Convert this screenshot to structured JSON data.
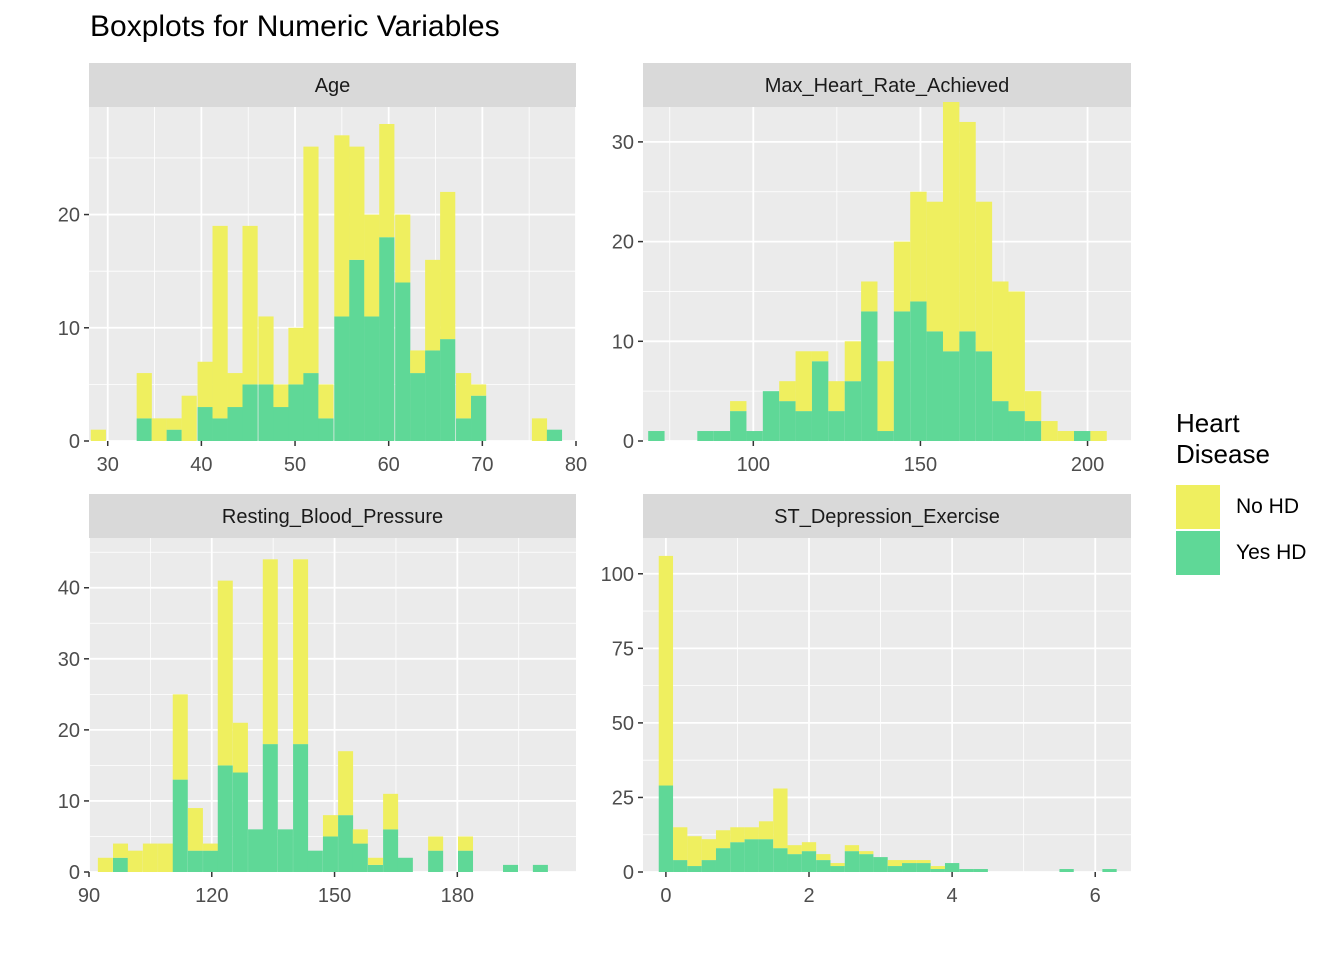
{
  "title": "Boxplots for Numeric Variables",
  "legend": {
    "title": "Heart\nDisease",
    "items": [
      {
        "label": "No HD",
        "color": "#EFEF5F"
      },
      {
        "label": "Yes HD",
        "color": "#5FD897"
      }
    ]
  },
  "colors": {
    "panel_bg": "#EBEBEB",
    "strip_bg": "#D9D9D9",
    "grid": "#FFFFFF",
    "axis_text": "#4D4D4D",
    "no_hd": "#EFEF5F",
    "yes_hd": "#5FD897"
  },
  "chart_data": [
    {
      "type": "bar",
      "stacked": true,
      "strip_label": "Age",
      "xlim": [
        28,
        80
      ],
      "ylim": [
        0,
        29.5
      ],
      "x_ticks": [
        30,
        40,
        50,
        60,
        70,
        80
      ],
      "y_ticks": [
        0,
        10,
        20
      ],
      "bin_width": 1.62,
      "bin_centers": [
        29.0,
        30.6,
        32.2,
        33.9,
        35.5,
        37.1,
        38.7,
        40.4,
        42.0,
        43.6,
        45.2,
        46.9,
        48.5,
        50.1,
        51.7,
        53.3,
        55.0,
        56.6,
        58.2,
        59.8,
        61.5,
        63.1,
        64.7,
        66.3,
        68.0,
        69.6,
        71.2,
        72.8,
        74.5,
        76.1,
        77.7
      ],
      "series": [
        {
          "name": "No HD",
          "values": [
            1,
            0,
            0,
            4,
            2,
            1,
            4,
            4,
            17,
            3,
            14,
            6,
            2,
            5,
            20,
            3,
            16,
            10,
            9,
            10,
            6,
            2,
            8,
            13,
            4,
            1,
            0,
            0,
            0,
            2,
            0
          ]
        },
        {
          "name": "Yes HD",
          "values": [
            0,
            0,
            0,
            2,
            0,
            1,
            0,
            3,
            2,
            3,
            5,
            5,
            3,
            5,
            6,
            2,
            11,
            16,
            11,
            18,
            14,
            6,
            8,
            9,
            2,
            4,
            0,
            0,
            0,
            0,
            1
          ]
        }
      ]
    },
    {
      "type": "bar",
      "stacked": true,
      "strip_label": "Max_Heart_Rate_Achieved",
      "xlim": [
        67,
        213
      ],
      "ylim": [
        0,
        33.5
      ],
      "x_ticks": [
        100,
        150,
        200
      ],
      "y_ticks": [
        0,
        10,
        20,
        30
      ],
      "bin_width": 4.9,
      "bin_centers": [
        71.0,
        75.9,
        80.8,
        85.7,
        90.6,
        95.5,
        100.4,
        105.3,
        110.2,
        115.1,
        120.0,
        124.9,
        129.8,
        134.7,
        139.6,
        144.5,
        149.4,
        154.3,
        159.2,
        164.1,
        169.0,
        173.9,
        178.8,
        183.7,
        188.6,
        193.5,
        198.4,
        203.3
      ],
      "series": [
        {
          "name": "No HD",
          "values": [
            0,
            0,
            0,
            0,
            0,
            1,
            0,
            0,
            2,
            6,
            1,
            3,
            4,
            3,
            7,
            7,
            11,
            13,
            25,
            21,
            15,
            12,
            12,
            3,
            2,
            1,
            0,
            1
          ]
        },
        {
          "name": "Yes HD",
          "values": [
            1,
            0,
            0,
            1,
            1,
            3,
            1,
            5,
            4,
            3,
            8,
            3,
            6,
            13,
            1,
            13,
            14,
            11,
            9,
            11,
            9,
            4,
            3,
            2,
            0,
            0,
            1,
            0
          ]
        }
      ]
    },
    {
      "type": "bar",
      "stacked": true,
      "strip_label": "Resting_Blood_Pressure",
      "xlim": [
        90,
        209
      ],
      "ylim": [
        0,
        47
      ],
      "x_ticks": [
        90,
        120,
        150,
        180
      ],
      "y_ticks": [
        0,
        10,
        20,
        30,
        40
      ],
      "bin_width": 3.67,
      "bin_centers": [
        94.0,
        97.7,
        101.3,
        105.0,
        108.7,
        112.3,
        116.0,
        119.7,
        123.3,
        127.0,
        130.7,
        134.3,
        138.0,
        141.7,
        145.3,
        149.0,
        152.7,
        156.3,
        160.0,
        163.7,
        167.3,
        171.0,
        174.7,
        178.3,
        182.0,
        185.7,
        189.3,
        193.0,
        196.7,
        200.3
      ],
      "series": [
        {
          "name": "No HD",
          "values": [
            2,
            2,
            3,
            4,
            4,
            12,
            6,
            1,
            26,
            7,
            0,
            26,
            0,
            26,
            0,
            3,
            9,
            2,
            1,
            5,
            0,
            0,
            2,
            0,
            2,
            0,
            0,
            0,
            0,
            0
          ]
        },
        {
          "name": "Yes HD",
          "values": [
            0,
            2,
            0,
            0,
            0,
            13,
            3,
            3,
            15,
            14,
            6,
            18,
            6,
            18,
            3,
            5,
            8,
            4,
            1,
            6,
            2,
            0,
            3,
            0,
            3,
            0,
            0,
            1,
            0,
            1
          ]
        }
      ]
    },
    {
      "type": "bar",
      "stacked": true,
      "strip_label": "ST_Depression_Exercise",
      "xlim": [
        -0.32,
        6.5
      ],
      "ylim": [
        0,
        112
      ],
      "x_ticks": [
        0,
        2,
        4,
        6
      ],
      "y_ticks": [
        0,
        25,
        50,
        75,
        100
      ],
      "bin_width": 0.2,
      "bin_centers": [
        0.0,
        0.2,
        0.4,
        0.6,
        0.8,
        1.0,
        1.2,
        1.4,
        1.6,
        1.8,
        2.0,
        2.2,
        2.4,
        2.6,
        2.8,
        3.0,
        3.2,
        3.4,
        3.6,
        3.8,
        4.0,
        4.2,
        4.4,
        4.6,
        4.8,
        5.0,
        5.2,
        5.4,
        5.6,
        5.8,
        6.0,
        6.2
      ],
      "series": [
        {
          "name": "No HD",
          "values": [
            77,
            11,
            10,
            7,
            6,
            5,
            4,
            6,
            20,
            3,
            3,
            2,
            1,
            2,
            1,
            0,
            2,
            1,
            1,
            1,
            0,
            0,
            0,
            0,
            0,
            0,
            0,
            0,
            0,
            0,
            0,
            0
          ]
        },
        {
          "name": "Yes HD",
          "values": [
            29,
            4,
            2,
            4,
            8,
            10,
            11,
            11,
            8,
            6,
            7,
            4,
            2,
            7,
            6,
            5,
            2,
            3,
            3,
            1,
            3,
            1,
            1,
            0,
            0,
            0,
            0,
            0,
            1,
            0,
            0,
            1
          ]
        }
      ]
    }
  ]
}
